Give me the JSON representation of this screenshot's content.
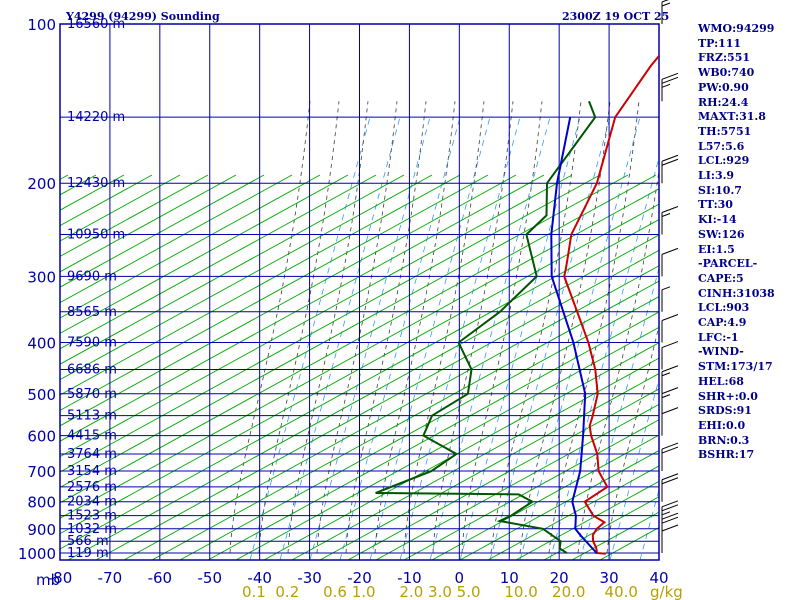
{
  "header": {
    "title": "Y4299 (94299) Sounding",
    "valid_time": "2300Z 19 OCT 25"
  },
  "indices": [
    "WMO:94299",
    "TP:111",
    "FRZ:551",
    "WB0:740",
    "PW:0.90",
    "RH:24.4",
    "MAXT:31.8",
    "TH:5751",
    "L57:5.6",
    "LCL:929",
    "LI:3.9",
    "SI:10.7",
    "TT:30",
    "KI:-14",
    "SW:126",
    "EI:1.5",
    "-PARCEL-",
    "CAPE:5",
    "CINH:31038",
    "LCL:903",
    "CAP:4.9",
    "LFC:-1",
    "-WIND-",
    "STM:173/17",
    "HEL:68",
    "SHR+:0.0",
    "SRDS:91",
    "EHI:0.0",
    "BRN:0.3",
    "BSHR:17"
  ],
  "colors": {
    "axes": "#0000aa",
    "dry_adiabat": "#00aa00",
    "moist_adiabat": "#3c3c3c",
    "mixing_ratio": "#3399ff",
    "temperature": "#cc0000",
    "dewpoint": "#005500",
    "parcel": "#0000cc",
    "wind_barbs": "#000000",
    "mixing_label": "#b8a000"
  },
  "chart_data": {
    "type": "line",
    "title": "Y4299 (94299) Sounding",
    "subtitle": "2300Z 19 OCT 25",
    "diagram": "skew-T log-P",
    "pressure_axis": {
      "unit": "mb",
      "range": [
        1000,
        100
      ],
      "ticks": [
        100,
        200,
        300,
        400,
        500,
        600,
        700,
        800,
        900,
        1000
      ],
      "tick_labels": [
        "100",
        "200",
        "300",
        "400",
        "500",
        "600",
        "700",
        "800",
        "900",
        "1000"
      ]
    },
    "unit_label": "mb",
    "temperature_axis": {
      "unit": "C",
      "range": [
        -80,
        40
      ],
      "ticks": [
        -80,
        -70,
        -60,
        -50,
        -40,
        -30,
        -20,
        -10,
        0,
        10,
        20,
        30,
        40
      ],
      "tick_labels": [
        "-80",
        "-70",
        "-60",
        "-50",
        "-40",
        "-30",
        "-20",
        "-10",
        "0",
        "10",
        "20",
        "30",
        "40"
      ]
    },
    "mixing_ratio_labels": [
      "0.1",
      "0.2",
      "0.6",
      "1.0",
      "2.0",
      "3.0",
      "5.0",
      "10.0",
      "20.0",
      "40.0"
    ],
    "mixing_ratio_unit": "g/kg",
    "mixing_ratio_axis_text": "0.1  0.2     0.6 1.0     2.0 3.0 5.0     10.0   20.0    40.0",
    "height_labels": [
      {
        "p": 100,
        "text": "16560 m"
      },
      {
        "p": 150,
        "text": "14220 m"
      },
      {
        "p": 200,
        "text": "12430 m"
      },
      {
        "p": 250,
        "text": "10950 m"
      },
      {
        "p": 300,
        "text": "9690 m"
      },
      {
        "p": 350,
        "text": "8565 m"
      },
      {
        "p": 400,
        "text": "7590 m"
      },
      {
        "p": 450,
        "text": "6686 m"
      },
      {
        "p": 500,
        "text": "5870 m"
      },
      {
        "p": 550,
        "text": "5113 m"
      },
      {
        "p": 600,
        "text": "4415 m"
      },
      {
        "p": 650,
        "text": "3764 m"
      },
      {
        "p": 700,
        "text": "3154 m"
      },
      {
        "p": 750,
        "text": "2576 m"
      },
      {
        "p": 800,
        "text": "2034 m"
      },
      {
        "p": 850,
        "text": "1523 m"
      },
      {
        "p": 900,
        "text": "1032 m"
      },
      {
        "p": 950,
        "text": "566 m"
      },
      {
        "p": 1000,
        "text": "119 m"
      }
    ],
    "series": [
      {
        "name": "temperature",
        "points": [
          {
            "p": 1003,
            "t": 29.5
          },
          {
            "p": 1000,
            "t": 27.5
          },
          {
            "p": 990,
            "t": 27.0
          },
          {
            "p": 975,
            "t": 26.0
          },
          {
            "p": 950,
            "t": 24.0
          },
          {
            "p": 925,
            "t": 22.5
          },
          {
            "p": 900,
            "t": 21.8
          },
          {
            "p": 875,
            "t": 21.8
          },
          {
            "p": 850,
            "t": 18.0
          },
          {
            "p": 800,
            "t": 13.0
          },
          {
            "p": 750,
            "t": 14.0
          },
          {
            "p": 700,
            "t": 8.5
          },
          {
            "p": 650,
            "t": 4.2
          },
          {
            "p": 600,
            "t": -1.4
          },
          {
            "p": 575,
            "t": -4.0
          },
          {
            "p": 550,
            "t": -5.8
          },
          {
            "p": 500,
            "t": -10.0
          },
          {
            "p": 450,
            "t": -16.2
          },
          {
            "p": 400,
            "t": -24.0
          },
          {
            "p": 350,
            "t": -33.5
          },
          {
            "p": 300,
            "t": -44.5
          },
          {
            "p": 290,
            "t": -46.0
          },
          {
            "p": 275,
            "t": -48.5
          },
          {
            "p": 250,
            "t": -53.0
          },
          {
            "p": 200,
            "t": -60.0
          },
          {
            "p": 150,
            "t": -72.0
          },
          {
            "p": 120,
            "t": -77.0
          },
          {
            "p": 100,
            "t": -80.0
          }
        ]
      },
      {
        "name": "dewpoint",
        "points": [
          {
            "p": 1000,
            "t": 21.5
          },
          {
            "p": 980,
            "t": 19.0
          },
          {
            "p": 950,
            "t": 17.5
          },
          {
            "p": 900,
            "t": 11.0
          },
          {
            "p": 870,
            "t": 0.5
          },
          {
            "p": 850,
            "t": 1.5
          },
          {
            "p": 800,
            "t": 2.5
          },
          {
            "p": 775,
            "t": -2.0
          },
          {
            "p": 770,
            "t": -31.0
          },
          {
            "p": 700,
            "t": -25.0
          },
          {
            "p": 650,
            "t": -24.0
          },
          {
            "p": 600,
            "t": -35.0
          },
          {
            "p": 550,
            "t": -38.0
          },
          {
            "p": 500,
            "t": -36.0
          },
          {
            "p": 450,
            "t": -41.0
          },
          {
            "p": 400,
            "t": -50.0
          },
          {
            "p": 350,
            "t": -49.0
          },
          {
            "p": 300,
            "t": -50.0
          },
          {
            "p": 250,
            "t": -62.0
          },
          {
            "p": 230,
            "t": -62.5
          },
          {
            "p": 200,
            "t": -70.0
          },
          {
            "p": 150,
            "t": -76.0
          },
          {
            "p": 140,
            "t": -81.0
          }
        ]
      },
      {
        "name": "parcel",
        "points": [
          {
            "p": 1000,
            "t": 27.5
          },
          {
            "p": 925,
            "t": 20.0
          },
          {
            "p": 900,
            "t": 17.5
          },
          {
            "p": 850,
            "t": 14.5
          },
          {
            "p": 800,
            "t": 10.5
          },
          {
            "p": 700,
            "t": 4.8
          },
          {
            "p": 600,
            "t": -3.0
          },
          {
            "p": 500,
            "t": -12.5
          },
          {
            "p": 400,
            "t": -27.0
          },
          {
            "p": 300,
            "t": -47.0
          },
          {
            "p": 250,
            "t": -57.0
          },
          {
            "p": 200,
            "t": -68.0
          },
          {
            "p": 150,
            "t": -81.0
          }
        ]
      }
    ],
    "wind_barbs": [
      {
        "p": 100,
        "speed_kt": 15
      },
      {
        "p": 140,
        "speed_kt": 25
      },
      {
        "p": 200,
        "speed_kt": 20
      },
      {
        "p": 250,
        "speed_kt": 15
      },
      {
        "p": 300,
        "speed_kt": 10
      },
      {
        "p": 350,
        "speed_kt": 5
      },
      {
        "p": 400,
        "speed_kt": 10
      },
      {
        "p": 450,
        "speed_kt": 10
      },
      {
        "p": 500,
        "speed_kt": 15
      },
      {
        "p": 550,
        "speed_kt": 15
      },
      {
        "p": 600,
        "speed_kt": 10
      },
      {
        "p": 700,
        "speed_kt": 20
      },
      {
        "p": 800,
        "speed_kt": 20
      },
      {
        "p": 900,
        "speed_kt": 25
      },
      {
        "p": 950,
        "speed_kt": 20
      },
      {
        "p": 1000,
        "speed_kt": 10
      }
    ]
  }
}
